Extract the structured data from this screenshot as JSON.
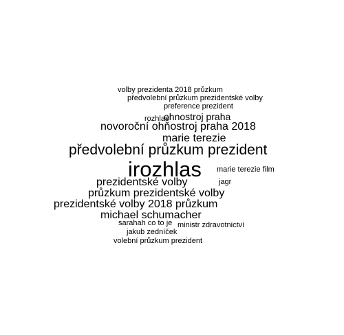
{
  "word_cloud": {
    "text_color": "#000000",
    "background_color": "#ffffff",
    "words": [
      {
        "text": "volby prezidenta 2018 průzkum",
        "weight": 1
      },
      {
        "text": "předvolební průzkum prezidentské volby",
        "weight": 1
      },
      {
        "text": "preference prezident",
        "weight": 1
      },
      {
        "text": "rozhlas",
        "weight": 1
      },
      {
        "text": "ohnostroj praha",
        "weight": 2
      },
      {
        "text": "novoroční ohňostroj praha 2018",
        "weight": 3
      },
      {
        "text": "marie terezie",
        "weight": 3
      },
      {
        "text": "předvolební průzkum prezident",
        "weight": 4
      },
      {
        "text": "irozhlas",
        "weight": 5
      },
      {
        "text": "marie terezie film",
        "weight": 1
      },
      {
        "text": "jagr",
        "weight": 1
      },
      {
        "text": "prezidentské volby",
        "weight": 3
      },
      {
        "text": "průzkum prezidentské volby",
        "weight": 3
      },
      {
        "text": "prezidentské volby 2018 průzkum",
        "weight": 3
      },
      {
        "text": "michael schumacher",
        "weight": 3
      },
      {
        "text": "sarahah co to je",
        "weight": 1
      },
      {
        "text": "ministr zdravotnictví",
        "weight": 1
      },
      {
        "text": "jakub zedníček",
        "weight": 1
      },
      {
        "text": "volební průzkum prezident",
        "weight": 1
      }
    ]
  }
}
